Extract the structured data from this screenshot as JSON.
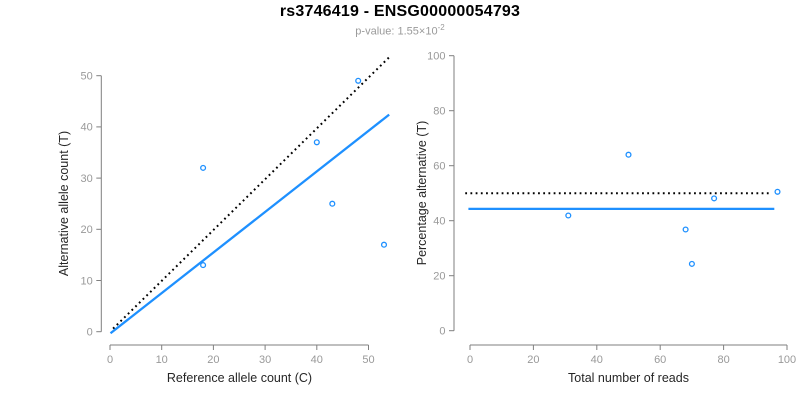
{
  "header": {
    "title": "rs3746419 - ENSG00000054793",
    "subtitle_prefix": "p-value: 1.55×10",
    "subtitle_exponent": "-2"
  },
  "colors": {
    "accent_blue": "#1E90FF",
    "reference_black": "#000000",
    "tick_label_gray": "#999999",
    "axis_gray": "#7f7f7f",
    "subtitle_gray": "#9a9a9a"
  },
  "chart_data": [
    {
      "type": "scatter",
      "panel": "left",
      "xlabel": "Reference allele count (C)",
      "ylabel": "Alternative allele count (T)",
      "xticks": [
        0,
        10,
        20,
        30,
        40,
        50
      ],
      "yticks": [
        0,
        10,
        20,
        30,
        40,
        50
      ],
      "xlim": [
        -2,
        56
      ],
      "ylim": [
        -2,
        54
      ],
      "grid": false,
      "points": [
        [
          18,
          32
        ],
        [
          18,
          13
        ],
        [
          40,
          37
        ],
        [
          43,
          25
        ],
        [
          48,
          49
        ],
        [
          53,
          17
        ]
      ],
      "lines": [
        {
          "name": "identity-line",
          "style": "dotted",
          "color": "#000000",
          "width": 2,
          "x1": 0.6,
          "y1": 0.6,
          "x2": 54.2,
          "y2": 53.8
        },
        {
          "name": "fit-line",
          "style": "solid",
          "color": "#1E90FF",
          "width": 2.3,
          "x1": 0.1,
          "y1": -0.3,
          "x2": 54.0,
          "y2": 42.4
        }
      ]
    },
    {
      "type": "scatter",
      "panel": "right",
      "xlabel": "Total number of reads",
      "ylabel": "Percentage alternative (T)",
      "xticks": [
        0,
        20,
        40,
        60,
        80,
        100
      ],
      "yticks": [
        0,
        20,
        40,
        60,
        80,
        100
      ],
      "xlim": [
        -4,
        104
      ],
      "ylim": [
        -4,
        104
      ],
      "grid": false,
      "points": [
        [
          31,
          41.9
        ],
        [
          50,
          64
        ],
        [
          68,
          36.8
        ],
        [
          70,
          24.3
        ],
        [
          77,
          48.1
        ],
        [
          97,
          50.5
        ]
      ],
      "lines": [
        {
          "name": "expected-50pct-line",
          "style": "dotted",
          "color": "#000000",
          "width": 2,
          "x1": -1.5,
          "y1": 50,
          "x2": 94.5,
          "y2": 50
        },
        {
          "name": "mean-pct-line",
          "style": "solid",
          "color": "#1E90FF",
          "width": 2.3,
          "x1": -0.5,
          "y1": 44.3,
          "x2": 96.0,
          "y2": 44.3
        }
      ]
    }
  ]
}
